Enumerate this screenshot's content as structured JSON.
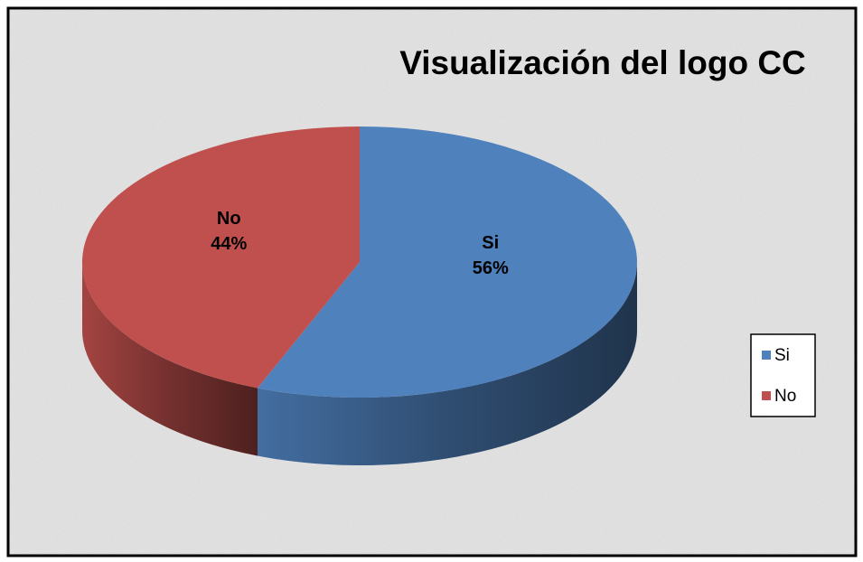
{
  "chart_data": {
    "type": "pie",
    "title": "Visualización del logo CC",
    "categories": [
      "Si",
      "No"
    ],
    "values": [
      56,
      44
    ],
    "value_labels": [
      "56%",
      "44%"
    ],
    "colors": [
      "#4f81bd",
      "#c0504d"
    ],
    "legend": "right"
  }
}
